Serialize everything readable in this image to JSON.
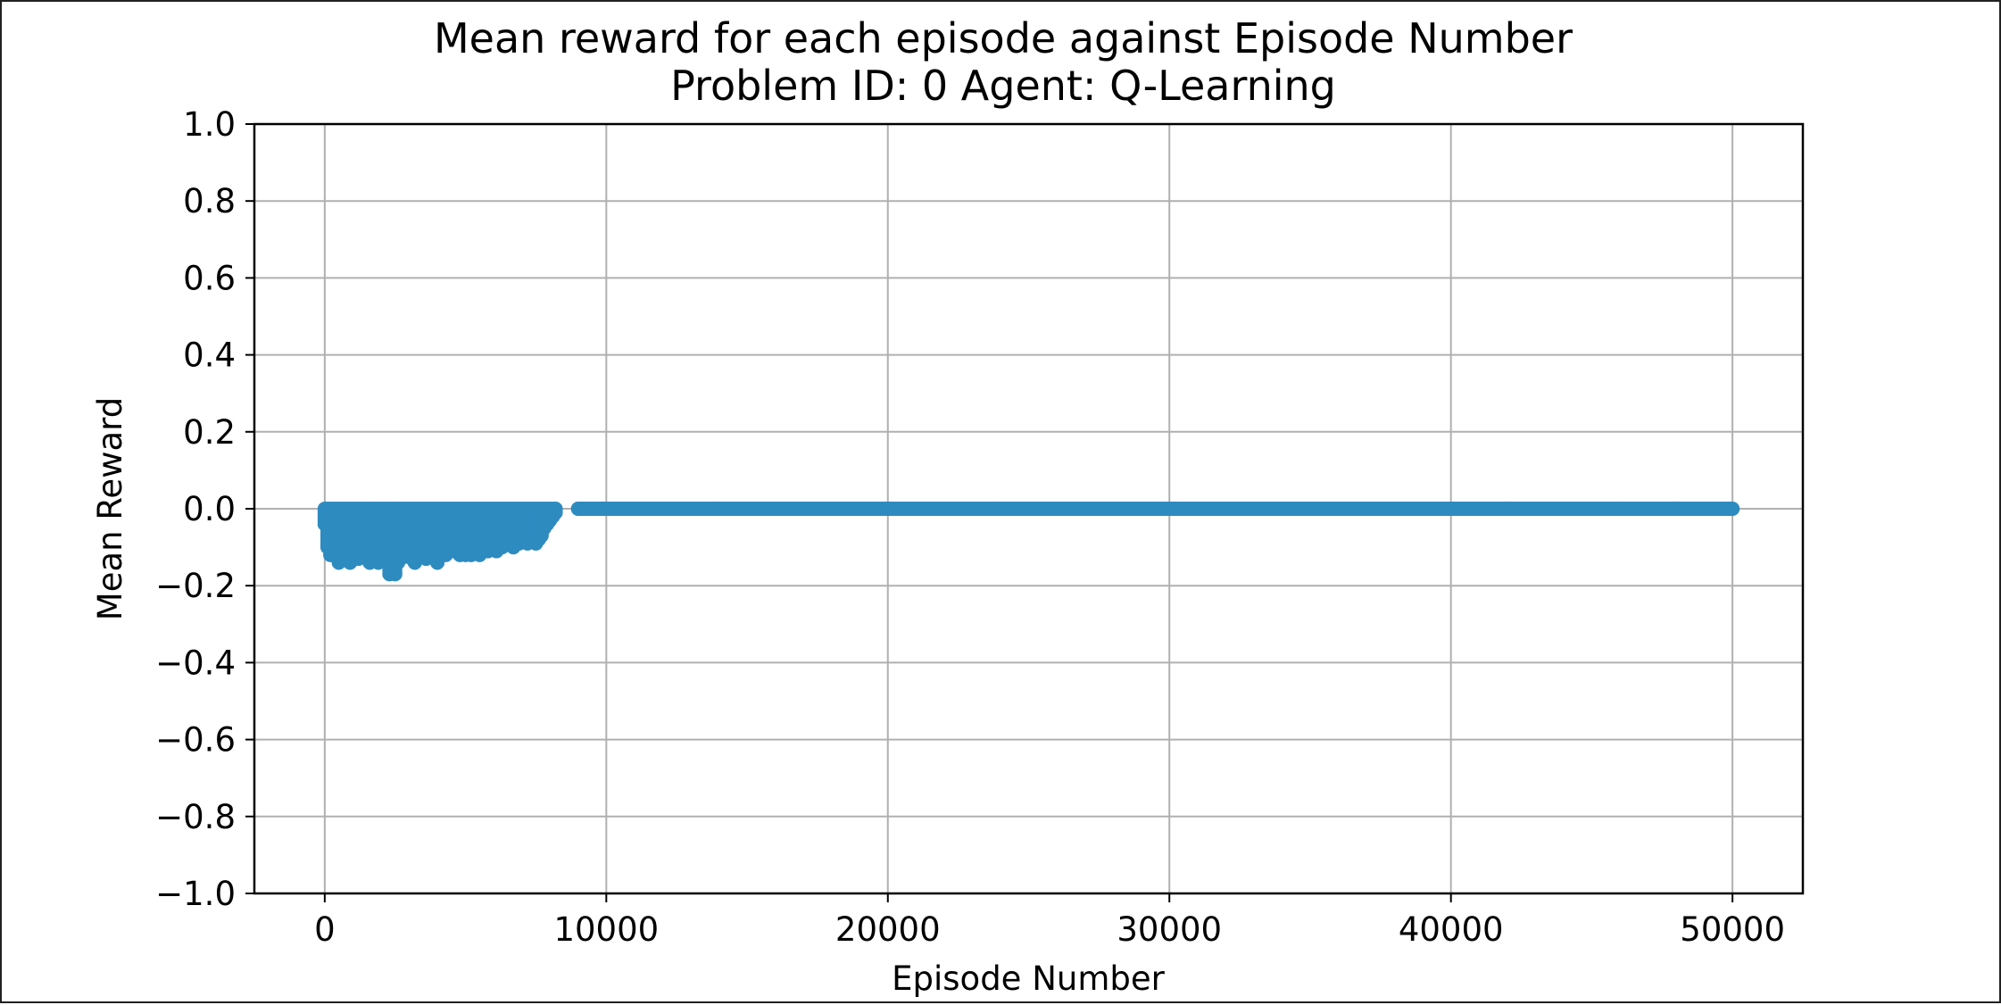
{
  "chart_data": {
    "type": "scatter",
    "title": "Mean reward for each episode against Episode Number",
    "subtitle": "Problem ID: 0 Agent: Q-Learning",
    "xlabel": "Episode Number",
    "ylabel": "Mean Reward",
    "xlim": [
      -2500,
      52500
    ],
    "ylim": [
      -1.0,
      1.0
    ],
    "xticks": [
      0,
      10000,
      20000,
      30000,
      40000,
      50000
    ],
    "xtick_labels": [
      "0",
      "10000",
      "20000",
      "30000",
      "40000",
      "50000"
    ],
    "yticks": [
      1.0,
      0.8,
      0.6,
      0.4,
      0.2,
      0.0,
      -0.2,
      -0.4,
      -0.6,
      -0.8,
      -1.0
    ],
    "ytick_labels": [
      "1.0",
      "0.8",
      "0.6",
      "0.4",
      "0.2",
      "0.0",
      "−0.2",
      "−0.4",
      "−0.6",
      "−0.8",
      "−1.0"
    ],
    "grid": true,
    "series": [
      {
        "color": "#2e8bc0",
        "x": [
          0,
          100,
          200,
          300,
          400,
          500,
          600,
          700,
          800,
          900,
          1000,
          1100,
          1200,
          1300,
          1400,
          1500,
          1600,
          1700,
          1800,
          1900,
          2000,
          2100,
          2200,
          2300,
          2400,
          2500,
          2600,
          2700,
          2800,
          2900,
          3000,
          3100,
          3200,
          3300,
          3400,
          3500,
          3600,
          3700,
          3800,
          3900,
          4000,
          4100,
          4200,
          4300,
          4400,
          4500,
          4600,
          4700,
          4800,
          4900,
          5000,
          5100,
          5200,
          5300,
          5400,
          5500,
          5600,
          5700,
          5800,
          5900,
          6000,
          6100,
          6200,
          6300,
          6400,
          6500,
          6600,
          6700,
          6800,
          6900,
          7000,
          7100,
          7200,
          7300,
          7400,
          7500,
          7600,
          7700,
          7800,
          7900,
          8000,
          8100,
          8200,
          9000,
          10000,
          12000,
          14000,
          16000,
          18000,
          20000,
          22000,
          24000,
          26000,
          28000,
          30000,
          32000,
          34000,
          36000,
          38000,
          40000,
          42000,
          44000,
          46000,
          48000,
          50000
        ],
        "y": [
          -0.04,
          -0.1,
          -0.12,
          -0.08,
          -0.11,
          -0.14,
          -0.09,
          -0.13,
          -0.1,
          -0.14,
          -0.12,
          -0.08,
          -0.13,
          -0.11,
          -0.1,
          -0.12,
          -0.14,
          -0.09,
          -0.12,
          -0.14,
          -0.13,
          -0.1,
          -0.12,
          -0.17,
          -0.15,
          -0.17,
          -0.14,
          -0.13,
          -0.11,
          -0.12,
          -0.1,
          -0.13,
          -0.14,
          -0.11,
          -0.1,
          -0.12,
          -0.13,
          -0.12,
          -0.11,
          -0.13,
          -0.14,
          -0.12,
          -0.1,
          -0.12,
          -0.11,
          -0.1,
          -0.11,
          -0.1,
          -0.12,
          -0.11,
          -0.12,
          -0.1,
          -0.12,
          -0.11,
          -0.1,
          -0.12,
          -0.11,
          -0.1,
          -0.11,
          -0.09,
          -0.1,
          -0.11,
          -0.09,
          -0.1,
          -0.09,
          -0.08,
          -0.09,
          -0.1,
          -0.08,
          -0.09,
          -0.08,
          -0.07,
          -0.09,
          -0.08,
          -0.07,
          -0.09,
          -0.08,
          -0.07,
          -0.05,
          -0.04,
          -0.03,
          -0.02,
          -0.01,
          0,
          0,
          0,
          0,
          0,
          0,
          0,
          0,
          0,
          0,
          0,
          0,
          0,
          0,
          0,
          0,
          0,
          0,
          0,
          0,
          0,
          0
        ]
      }
    ]
  }
}
